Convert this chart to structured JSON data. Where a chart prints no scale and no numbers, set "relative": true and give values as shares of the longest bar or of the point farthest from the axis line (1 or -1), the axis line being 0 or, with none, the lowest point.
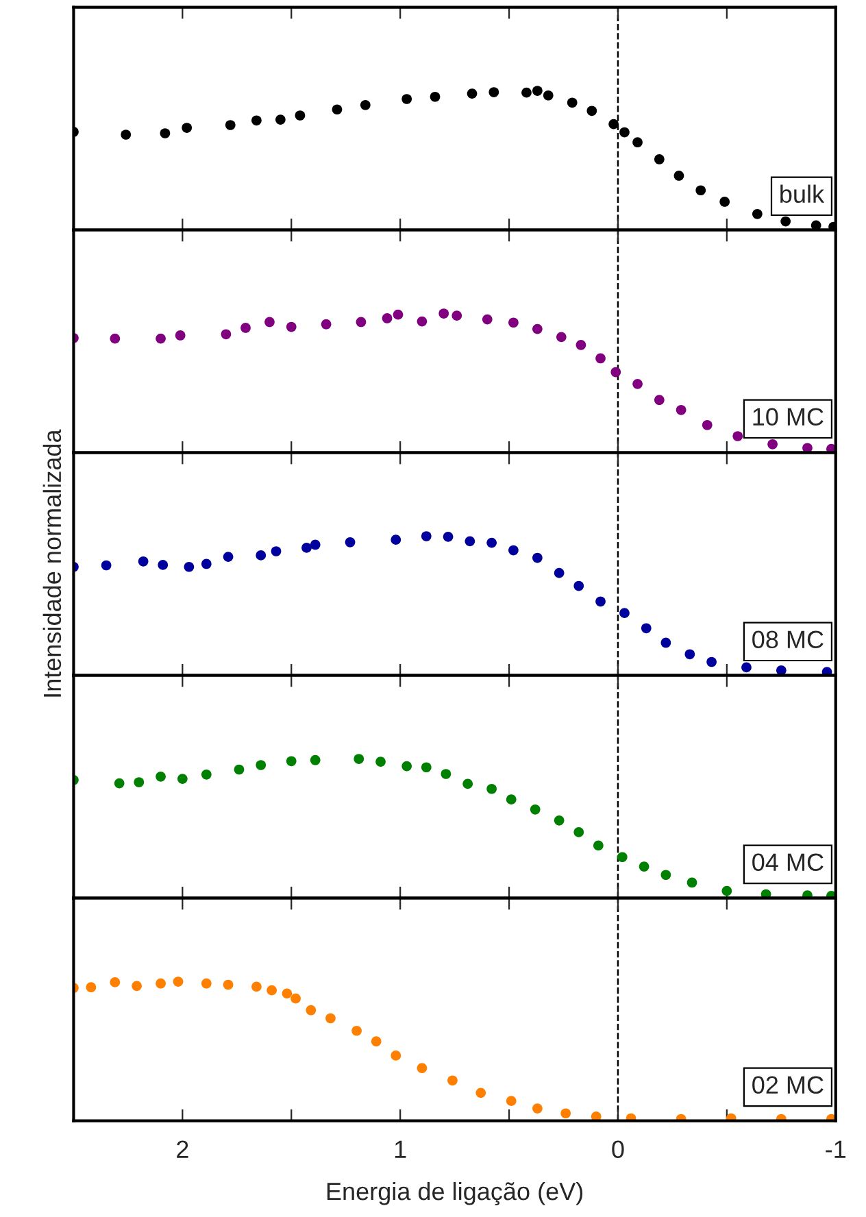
{
  "chart_data": [
    {
      "type": "scatter",
      "relative": true,
      "marker": "circle",
      "xlim": [
        2.5,
        -1
      ],
      "xticks": [
        {
          "value": 2,
          "label": null
        },
        {
          "value": 1.5,
          "label": null
        },
        {
          "value": 1,
          "label": null
        },
        {
          "value": 0.5,
          "label": null
        },
        {
          "value": 0,
          "label": null
        },
        {
          "value": -0.5,
          "label": null
        },
        {
          "value": -1,
          "label": null
        }
      ],
      "tick_labels": false,
      "ref_lines": [
        {
          "axis": "x",
          "value": 0,
          "line_style": "dashed",
          "color": "#000000"
        }
      ],
      "series": [
        {
          "name": "bulk",
          "color": "#000000",
          "x": [
            2.5,
            2.26,
            2.08,
            1.98,
            1.78,
            1.66,
            1.55,
            1.46,
            1.29,
            1.16,
            0.97,
            0.84,
            0.67,
            0.57,
            0.42,
            0.37,
            0.32,
            0.21,
            0.12,
            0.02,
            -0.03,
            -0.09,
            -0.19,
            -0.28,
            -0.38,
            -0.49,
            -0.64,
            -0.77,
            -0.91,
            -0.99
          ],
          "values": [
            0.705,
            0.685,
            0.695,
            0.734,
            0.754,
            0.787,
            0.793,
            0.823,
            0.866,
            0.898,
            0.941,
            0.957,
            0.98,
            0.99,
            0.987,
            1.0,
            0.967,
            0.915,
            0.856,
            0.761,
            0.702,
            0.63,
            0.508,
            0.39,
            0.285,
            0.203,
            0.115,
            0.062,
            0.033,
            0.023
          ]
        }
      ]
    },
    {
      "type": "scatter",
      "relative": true,
      "marker": "circle",
      "xlim": [
        2.5,
        -1
      ],
      "xticks": [
        {
          "value": 2,
          "label": null
        },
        {
          "value": 1.5,
          "label": null
        },
        {
          "value": 1,
          "label": null
        },
        {
          "value": 0.5,
          "label": null
        },
        {
          "value": 0,
          "label": null
        },
        {
          "value": -0.5,
          "label": null
        },
        {
          "value": -1,
          "label": null
        }
      ],
      "tick_labels": false,
      "ref_lines": [
        {
          "axis": "x",
          "value": 0,
          "line_style": "dashed",
          "color": "#000000"
        }
      ],
      "series": [
        {
          "name": "10 MC",
          "color": "#800080",
          "x": [
            2.5,
            2.31,
            2.1,
            2.01,
            1.8,
            1.71,
            1.6,
            1.5,
            1.34,
            1.18,
            1.06,
            1.01,
            0.9,
            0.8,
            0.74,
            0.6,
            0.48,
            0.37,
            0.26,
            0.17,
            0.08,
            0.01,
            -0.09,
            -0.19,
            -0.29,
            -0.41,
            -0.55,
            -0.71,
            -0.87,
            -0.98
          ],
          "values": [
            0.824,
            0.82,
            0.82,
            0.843,
            0.851,
            0.897,
            0.939,
            0.904,
            0.923,
            0.939,
            0.966,
            0.992,
            0.943,
            1.0,
            0.985,
            0.958,
            0.935,
            0.889,
            0.831,
            0.774,
            0.678,
            0.579,
            0.494,
            0.379,
            0.307,
            0.199,
            0.119,
            0.061,
            0.034,
            0.027
          ]
        }
      ]
    },
    {
      "type": "scatter",
      "relative": true,
      "marker": "circle",
      "ylabel": "Intensidade normalizada",
      "xlim": [
        2.5,
        -1
      ],
      "xticks": [
        {
          "value": 2,
          "label": null
        },
        {
          "value": 1.5,
          "label": null
        },
        {
          "value": 1,
          "label": null
        },
        {
          "value": 0.5,
          "label": null
        },
        {
          "value": 0,
          "label": null
        },
        {
          "value": -0.5,
          "label": null
        },
        {
          "value": -1,
          "label": null
        }
      ],
      "tick_labels": false,
      "ref_lines": [
        {
          "axis": "x",
          "value": 0,
          "line_style": "dashed",
          "color": "#000000"
        }
      ],
      "series": [
        {
          "name": "08 MC",
          "color": "#00009c",
          "x": [
            2.5,
            2.35,
            2.18,
            2.09,
            1.97,
            1.89,
            1.79,
            1.64,
            1.57,
            1.43,
            1.39,
            1.23,
            1.02,
            0.88,
            0.78,
            0.68,
            0.58,
            0.48,
            0.37,
            0.27,
            0.18,
            0.08,
            -0.03,
            -0.13,
            -0.22,
            -0.33,
            -0.43,
            -0.59,
            -0.75,
            -0.96
          ],
          "values": [
            0.78,
            0.791,
            0.819,
            0.794,
            0.78,
            0.801,
            0.852,
            0.863,
            0.892,
            0.917,
            0.939,
            0.957,
            0.975,
            1.0,
            0.996,
            0.964,
            0.953,
            0.899,
            0.845,
            0.736,
            0.643,
            0.531,
            0.448,
            0.339,
            0.235,
            0.152,
            0.097,
            0.058,
            0.036,
            0.025
          ]
        }
      ]
    },
    {
      "type": "scatter",
      "relative": true,
      "marker": "circle",
      "xlim": [
        2.5,
        -1
      ],
      "xticks": [
        {
          "value": 2,
          "label": null
        },
        {
          "value": 1.5,
          "label": null
        },
        {
          "value": 1,
          "label": null
        },
        {
          "value": 0.5,
          "label": null
        },
        {
          "value": 0,
          "label": null
        },
        {
          "value": -0.5,
          "label": null
        },
        {
          "value": -1,
          "label": null
        }
      ],
      "tick_labels": false,
      "ref_lines": [
        {
          "axis": "x",
          "value": 0,
          "line_style": "dashed",
          "color": "#000000"
        }
      ],
      "series": [
        {
          "name": "04 MC",
          "color": "#008000",
          "x": [
            2.5,
            2.29,
            2.2,
            2.1,
            2.0,
            1.89,
            1.74,
            1.64,
            1.5,
            1.39,
            1.19,
            1.09,
            0.97,
            0.88,
            0.79,
            0.69,
            0.58,
            0.49,
            0.38,
            0.27,
            0.18,
            0.09,
            -0.02,
            -0.12,
            -0.22,
            -0.34,
            -0.5,
            -0.68,
            -0.87,
            -0.98
          ],
          "values": [
            0.849,
            0.825,
            0.833,
            0.873,
            0.857,
            0.888,
            0.924,
            0.956,
            0.984,
            0.992,
            1.0,
            0.98,
            0.948,
            0.94,
            0.892,
            0.821,
            0.785,
            0.709,
            0.637,
            0.558,
            0.474,
            0.378,
            0.295,
            0.227,
            0.167,
            0.112,
            0.052,
            0.028,
            0.02,
            0.016
          ]
        }
      ]
    },
    {
      "type": "scatter",
      "relative": true,
      "marker": "circle",
      "xlabel": "Energia de ligação (eV)",
      "xlim": [
        2.5,
        -1
      ],
      "xticks": [
        2,
        {
          "value": 1.5,
          "label": null
        },
        1,
        {
          "value": 0.5,
          "label": null
        },
        0,
        {
          "value": -0.5,
          "label": null
        },
        -1
      ],
      "tick_labels": "x",
      "ref_lines": [
        {
          "axis": "x",
          "value": 0,
          "line_style": "dashed",
          "color": "#000000"
        }
      ],
      "series": [
        {
          "name": "02 MC",
          "color": "#ff8000",
          "x": [
            2.5,
            2.42,
            2.31,
            2.21,
            2.1,
            2.02,
            1.89,
            1.79,
            1.66,
            1.59,
            1.52,
            1.48,
            1.41,
            1.32,
            1.2,
            1.11,
            1.02,
            0.9,
            0.76,
            0.63,
            0.49,
            0.37,
            0.24,
            0.1,
            -0.06,
            -0.29,
            -0.52,
            -0.75,
            -0.98
          ],
          "values": [
            0.955,
            0.96,
            0.996,
            0.969,
            0.987,
            1.0,
            0.987,
            0.978,
            0.964,
            0.938,
            0.915,
            0.879,
            0.795,
            0.737,
            0.647,
            0.571,
            0.469,
            0.379,
            0.29,
            0.201,
            0.143,
            0.089,
            0.054,
            0.031,
            0.018,
            0.013,
            0.018,
            0.013,
            0.013
          ]
        }
      ]
    }
  ]
}
